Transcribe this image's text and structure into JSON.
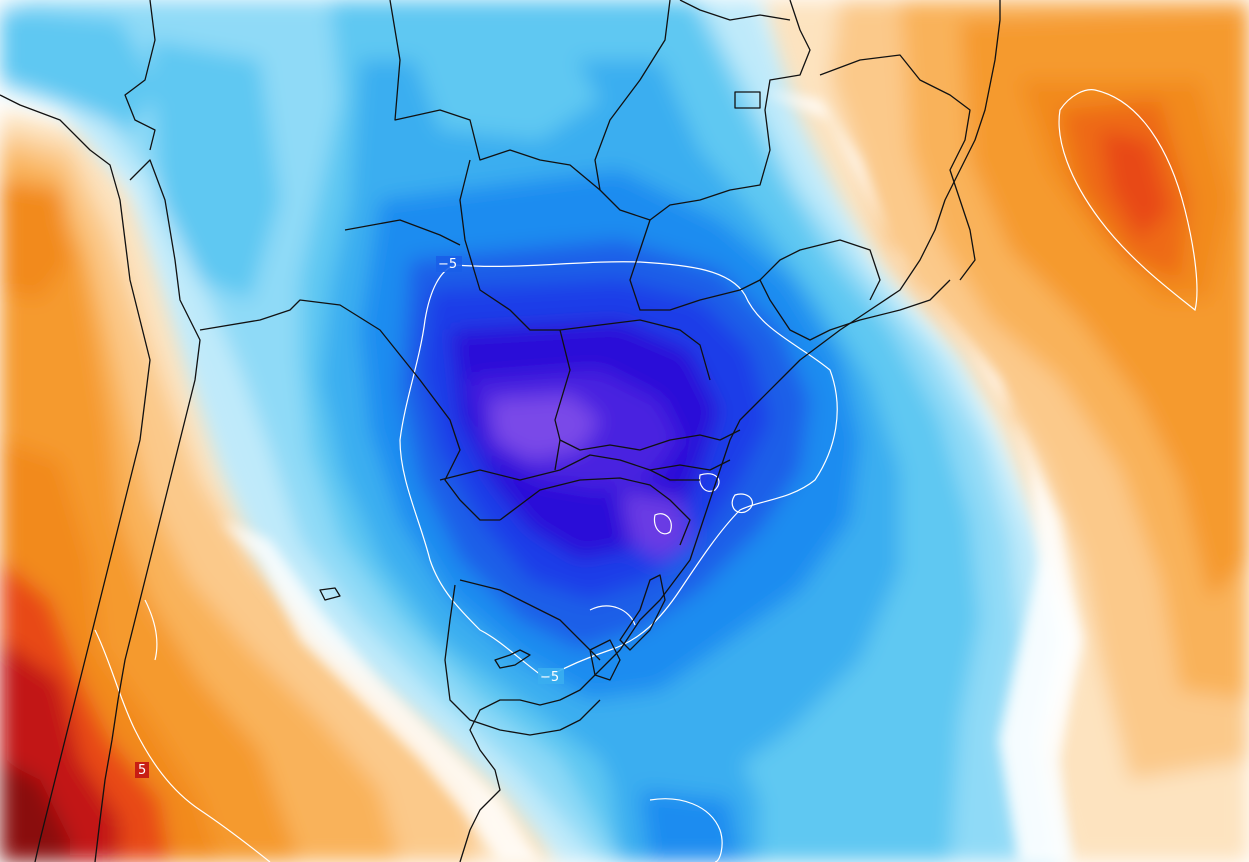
{
  "map": {
    "contour_labels": [
      {
        "id": "minus5_north",
        "text": "−5"
      },
      {
        "id": "minus5_south",
        "text": "−5"
      },
      {
        "id": "plus5_southwest",
        "text": "5"
      }
    ],
    "colors": {
      "ocean_white": "#ffffff",
      "cold_light": "#bfeafa",
      "cold_mid": "#5ec8f2",
      "cold_strong": "#1a8cf0",
      "cold_deep": "#1f3de8",
      "cold_extreme": "#2a10d8",
      "cold_core": "#7a4ae8",
      "warm_light": "#fde3bf",
      "warm_mid": "#f9b25a",
      "warm_strong": "#f28a1a",
      "warm_deep": "#e84a12",
      "warm_extreme": "#c21414",
      "warm_core": "#8a0a0a",
      "border": "#111111",
      "contour": "#ffffff"
    }
  }
}
